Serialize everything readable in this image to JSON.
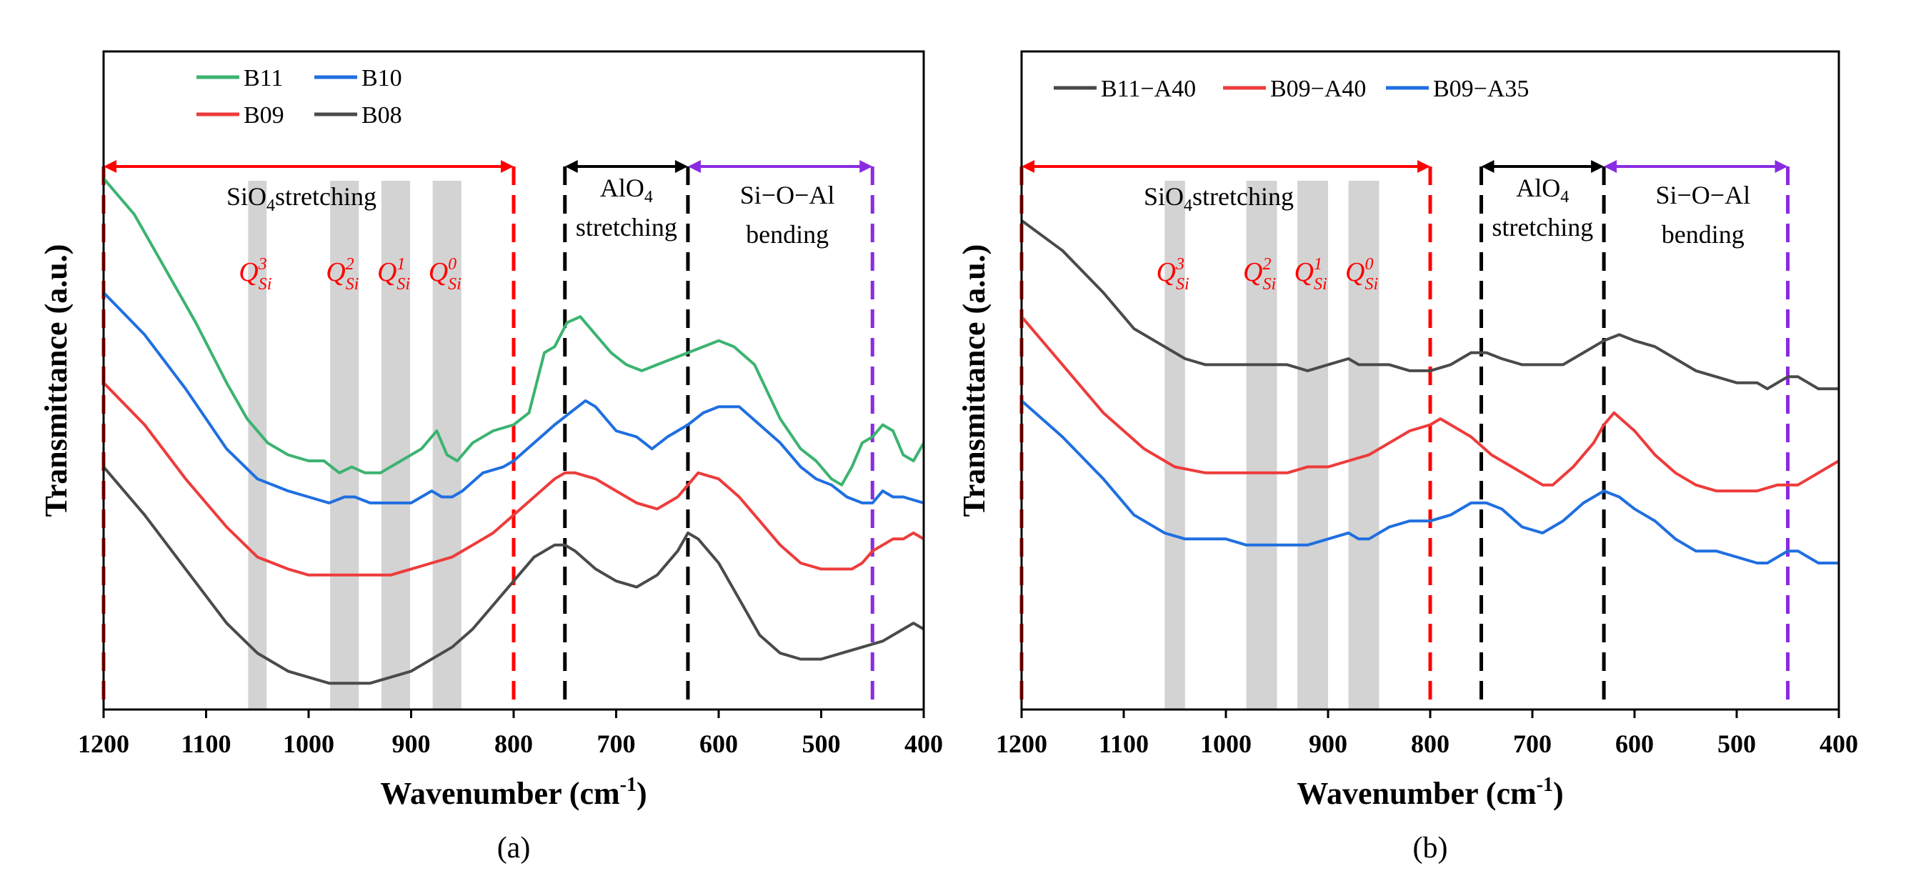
{
  "colors": {
    "green": "#3cb371",
    "blue": "#1f6fe0",
    "red": "#ee3b3b",
    "dark": "#4a4a4a",
    "redDash": "#ff0000",
    "purpleDash": "#8a2be2",
    "black": "#000000"
  },
  "chart_data": [
    {
      "type": "line",
      "panel_label": "(a)",
      "xlabel_main": "Wavenumber (cm",
      "xlabel_sup": "-1",
      "xlabel_end": ")",
      "ylabel": "Transmittance (a.u.)",
      "xlim": [
        1200,
        400
      ],
      "ylim": [
        0,
        1
      ],
      "xticks": [
        1200,
        1100,
        1000,
        900,
        800,
        700,
        600,
        500,
        400
      ],
      "legend": [
        "B11",
        "B10",
        "B09",
        "B08"
      ],
      "regions": [
        {
          "label": "SiO",
          "sub": "4",
          "rest": "stretching",
          "from": 1200,
          "to": 800
        },
        {
          "label": "AlO",
          "sub": "4",
          "line2": "stretching",
          "from": 750,
          "to": 630
        },
        {
          "label": "Si−O−Al",
          "line2": "bending",
          "from": 630,
          "to": 450
        }
      ],
      "bands": [
        {
          "center": 1050,
          "width": 18,
          "label": "Q",
          "sub": "Si",
          "sup": "3"
        },
        {
          "center": 965,
          "width": 28,
          "label": "Q",
          "sub": "Si",
          "sup": "2"
        },
        {
          "center": 915,
          "width": 28,
          "label": "Q",
          "sub": "Si",
          "sup": "1"
        },
        {
          "center": 865,
          "width": 28,
          "label": "Q",
          "sub": "Si",
          "sup": "0"
        }
      ],
      "series": [
        {
          "name": "B11",
          "color": "green",
          "x": [
            1200,
            1170,
            1140,
            1110,
            1080,
            1060,
            1040,
            1020,
            1000,
            985,
            970,
            958,
            945,
            930,
            910,
            890,
            875,
            865,
            855,
            840,
            820,
            800,
            785,
            770,
            760,
            748,
            735,
            720,
            705,
            690,
            675,
            660,
            645,
            630,
            615,
            600,
            585,
            565,
            540,
            520,
            505,
            490,
            480,
            470,
            460,
            450,
            440,
            430,
            420,
            410,
            400
          ],
          "y": [
            0.86,
            0.8,
            0.71,
            0.62,
            0.52,
            0.46,
            0.42,
            0.4,
            0.39,
            0.39,
            0.37,
            0.38,
            0.37,
            0.37,
            0.39,
            0.41,
            0.44,
            0.4,
            0.39,
            0.42,
            0.44,
            0.45,
            0.47,
            0.57,
            0.58,
            0.62,
            0.63,
            0.6,
            0.57,
            0.55,
            0.54,
            0.55,
            0.56,
            0.57,
            0.58,
            0.59,
            0.58,
            0.55,
            0.46,
            0.41,
            0.39,
            0.36,
            0.35,
            0.38,
            0.42,
            0.43,
            0.45,
            0.44,
            0.4,
            0.39,
            0.42
          ]
        },
        {
          "name": "B10",
          "color": "blue",
          "x": [
            1200,
            1160,
            1120,
            1080,
            1050,
            1020,
            1000,
            980,
            965,
            955,
            940,
            920,
            900,
            880,
            870,
            860,
            850,
            830,
            810,
            800,
            780,
            760,
            745,
            730,
            720,
            700,
            680,
            665,
            650,
            630,
            615,
            600,
            580,
            560,
            540,
            520,
            505,
            490,
            475,
            460,
            450,
            440,
            430,
            420,
            400
          ],
          "y": [
            0.67,
            0.6,
            0.51,
            0.41,
            0.36,
            0.34,
            0.33,
            0.32,
            0.33,
            0.33,
            0.32,
            0.32,
            0.32,
            0.34,
            0.33,
            0.33,
            0.34,
            0.37,
            0.38,
            0.39,
            0.42,
            0.45,
            0.47,
            0.49,
            0.48,
            0.44,
            0.43,
            0.41,
            0.43,
            0.45,
            0.47,
            0.48,
            0.48,
            0.45,
            0.42,
            0.38,
            0.36,
            0.35,
            0.33,
            0.32,
            0.32,
            0.34,
            0.33,
            0.33,
            0.32
          ]
        },
        {
          "name": "B09",
          "color": "red",
          "x": [
            1200,
            1160,
            1120,
            1080,
            1050,
            1020,
            1000,
            980,
            960,
            940,
            920,
            900,
            880,
            860,
            840,
            820,
            800,
            780,
            760,
            750,
            740,
            720,
            700,
            680,
            660,
            640,
            630,
            620,
            600,
            580,
            560,
            540,
            520,
            500,
            490,
            480,
            470,
            460,
            450,
            440,
            430,
            420,
            410,
            400
          ],
          "y": [
            0.52,
            0.45,
            0.36,
            0.28,
            0.23,
            0.21,
            0.2,
            0.2,
            0.2,
            0.2,
            0.2,
            0.21,
            0.22,
            0.23,
            0.25,
            0.27,
            0.3,
            0.33,
            0.36,
            0.37,
            0.37,
            0.36,
            0.34,
            0.32,
            0.31,
            0.33,
            0.35,
            0.37,
            0.36,
            0.33,
            0.29,
            0.25,
            0.22,
            0.21,
            0.21,
            0.21,
            0.21,
            0.22,
            0.24,
            0.25,
            0.26,
            0.26,
            0.27,
            0.26
          ]
        },
        {
          "name": "B08",
          "color": "dark",
          "x": [
            1200,
            1160,
            1120,
            1080,
            1050,
            1020,
            1000,
            980,
            960,
            940,
            920,
            900,
            880,
            860,
            840,
            820,
            800,
            780,
            760,
            750,
            740,
            720,
            700,
            680,
            660,
            640,
            630,
            620,
            600,
            580,
            560,
            540,
            520,
            500,
            480,
            460,
            440,
            420,
            410,
            400
          ],
          "y": [
            0.38,
            0.3,
            0.21,
            0.12,
            0.07,
            0.04,
            0.03,
            0.02,
            0.02,
            0.02,
            0.03,
            0.04,
            0.06,
            0.08,
            0.11,
            0.15,
            0.19,
            0.23,
            0.25,
            0.25,
            0.24,
            0.21,
            0.19,
            0.18,
            0.2,
            0.24,
            0.27,
            0.26,
            0.22,
            0.16,
            0.1,
            0.07,
            0.06,
            0.06,
            0.07,
            0.08,
            0.09,
            0.11,
            0.12,
            0.11
          ]
        }
      ]
    },
    {
      "type": "line",
      "panel_label": "(b)",
      "xlabel_main": "Wavenumber (cm",
      "xlabel_sup": "-1",
      "xlabel_end": ")",
      "ylabel": "Transmittance (a.u.)",
      "xlim": [
        1200,
        400
      ],
      "ylim": [
        0,
        1
      ],
      "xticks": [
        1200,
        1100,
        1000,
        900,
        800,
        700,
        600,
        500,
        400
      ],
      "legend": [
        "B11−A40",
        "B09−A40",
        "B09−A35"
      ],
      "regions": [
        {
          "label": "SiO",
          "sub": "4",
          "rest": "stretching",
          "from": 1200,
          "to": 800
        },
        {
          "label": "AlO",
          "sub": "4",
          "line2": "stretching",
          "from": 750,
          "to": 630
        },
        {
          "label": "Si−O−Al",
          "line2": "bending",
          "from": 630,
          "to": 450
        }
      ],
      "bands": [
        {
          "center": 1050,
          "width": 20,
          "label": "Q",
          "sub": "Si",
          "sup": "3"
        },
        {
          "center": 965,
          "width": 30,
          "label": "Q",
          "sub": "Si",
          "sup": "2"
        },
        {
          "center": 915,
          "width": 30,
          "label": "Q",
          "sub": "Si",
          "sup": "1"
        },
        {
          "center": 865,
          "width": 30,
          "label": "Q",
          "sub": "Si",
          "sup": "0"
        }
      ],
      "series": [
        {
          "name": "B11−A40",
          "color": "dark",
          "x": [
            1200,
            1160,
            1120,
            1090,
            1060,
            1040,
            1020,
            1000,
            980,
            960,
            940,
            920,
            900,
            880,
            870,
            860,
            840,
            820,
            800,
            780,
            760,
            745,
            730,
            710,
            690,
            670,
            650,
            630,
            615,
            600,
            580,
            560,
            540,
            520,
            500,
            480,
            470,
            460,
            450,
            440,
            430,
            420,
            400
          ],
          "y": [
            0.79,
            0.74,
            0.67,
            0.61,
            0.58,
            0.56,
            0.55,
            0.55,
            0.55,
            0.55,
            0.55,
            0.54,
            0.55,
            0.56,
            0.55,
            0.55,
            0.55,
            0.54,
            0.54,
            0.55,
            0.57,
            0.57,
            0.56,
            0.55,
            0.55,
            0.55,
            0.57,
            0.59,
            0.6,
            0.59,
            0.58,
            0.56,
            0.54,
            0.53,
            0.52,
            0.52,
            0.51,
            0.52,
            0.53,
            0.53,
            0.52,
            0.51,
            0.51
          ]
        },
        {
          "name": "B09−A40",
          "color": "red",
          "x": [
            1200,
            1160,
            1120,
            1080,
            1050,
            1020,
            1000,
            980,
            960,
            940,
            920,
            900,
            880,
            860,
            840,
            820,
            800,
            790,
            780,
            760,
            740,
            720,
            700,
            690,
            680,
            660,
            640,
            630,
            620,
            600,
            580,
            560,
            540,
            520,
            500,
            480,
            460,
            440,
            420,
            410,
            400
          ],
          "y": [
            0.63,
            0.55,
            0.47,
            0.41,
            0.38,
            0.37,
            0.37,
            0.37,
            0.37,
            0.37,
            0.38,
            0.38,
            0.39,
            0.4,
            0.42,
            0.44,
            0.45,
            0.46,
            0.45,
            0.43,
            0.4,
            0.38,
            0.36,
            0.35,
            0.35,
            0.38,
            0.42,
            0.45,
            0.47,
            0.44,
            0.4,
            0.37,
            0.35,
            0.34,
            0.34,
            0.34,
            0.35,
            0.35,
            0.37,
            0.38,
            0.39
          ]
        },
        {
          "name": "B09−A35",
          "color": "blue",
          "x": [
            1200,
            1160,
            1120,
            1090,
            1060,
            1040,
            1020,
            1000,
            980,
            960,
            940,
            920,
            900,
            880,
            870,
            860,
            840,
            820,
            800,
            780,
            760,
            745,
            730,
            710,
            690,
            670,
            650,
            630,
            615,
            600,
            580,
            560,
            540,
            520,
            500,
            480,
            470,
            460,
            450,
            440,
            430,
            420,
            400
          ],
          "y": [
            0.49,
            0.43,
            0.36,
            0.3,
            0.27,
            0.26,
            0.26,
            0.26,
            0.25,
            0.25,
            0.25,
            0.25,
            0.26,
            0.27,
            0.26,
            0.26,
            0.28,
            0.29,
            0.29,
            0.3,
            0.32,
            0.32,
            0.31,
            0.28,
            0.27,
            0.29,
            0.32,
            0.34,
            0.33,
            0.31,
            0.29,
            0.26,
            0.24,
            0.24,
            0.23,
            0.22,
            0.22,
            0.23,
            0.24,
            0.24,
            0.23,
            0.22,
            0.22
          ]
        }
      ]
    }
  ]
}
